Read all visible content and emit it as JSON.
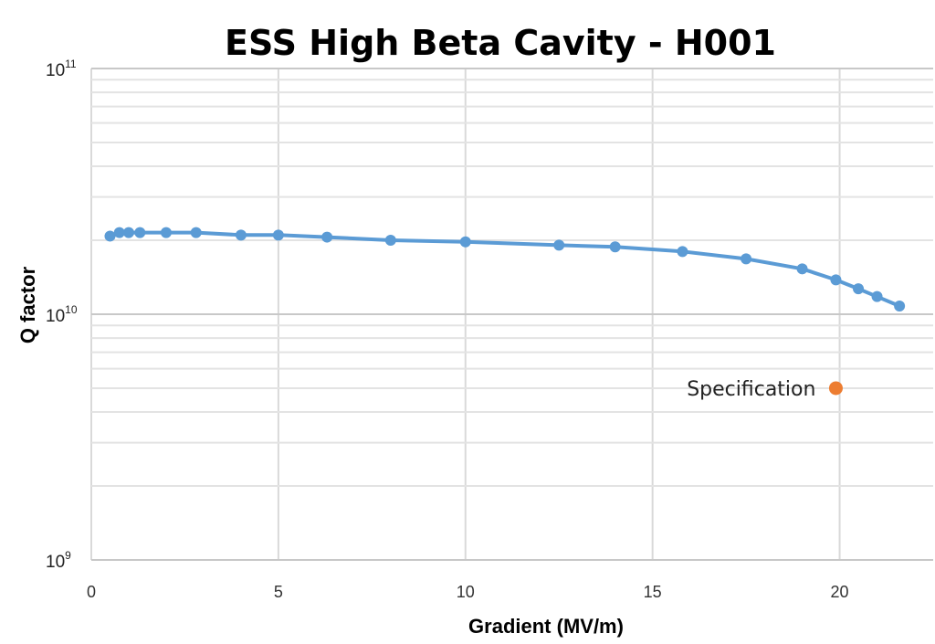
{
  "chart_data": {
    "type": "scatter",
    "title": "ESS High Beta Cavity - H001",
    "xlabel": "Gradient (MV/m)",
    "ylabel": "Q factor",
    "xlim": [
      0,
      22.5
    ],
    "ylim": [
      1000000000,
      100000000000
    ],
    "yscale": "log",
    "x_ticks": [
      "0",
      "5",
      "10",
      "15",
      "20"
    ],
    "y_ticks": [
      {
        "base": "10",
        "exp": "9",
        "value": 1000000000
      },
      {
        "base": "10",
        "exp": "10",
        "value": 10000000000
      },
      {
        "base": "10",
        "exp": "11",
        "value": 100000000000
      }
    ],
    "grid": true,
    "series": [
      {
        "type": "line",
        "color": "#5B9BD5",
        "points": [
          [
            0.5,
            20800000000
          ],
          [
            0.75,
            21500000000
          ],
          [
            1.0,
            21500000000
          ],
          [
            1.3,
            21500000000
          ],
          [
            2.0,
            21500000000
          ],
          [
            2.8,
            21500000000
          ],
          [
            4.0,
            21000000000
          ],
          [
            5.0,
            21000000000
          ],
          [
            6.3,
            20600000000
          ],
          [
            8.0,
            20000000000
          ],
          [
            10.0,
            19700000000
          ],
          [
            12.5,
            19100000000
          ],
          [
            14.0,
            18800000000
          ],
          [
            15.8,
            18000000000
          ],
          [
            17.5,
            16800000000
          ],
          [
            19.0,
            15300000000
          ],
          [
            19.9,
            13800000000
          ],
          [
            20.5,
            12700000000
          ],
          [
            21.0,
            11800000000
          ],
          [
            21.6,
            10800000000
          ]
        ]
      },
      {
        "type": "scatter",
        "name": "Specification",
        "color": "#ED7D31",
        "points": [
          [
            19.9,
            5000000000
          ]
        ]
      }
    ],
    "annotations": [
      {
        "text": "Specification",
        "x": 19.9,
        "y": 5000000000
      }
    ]
  }
}
